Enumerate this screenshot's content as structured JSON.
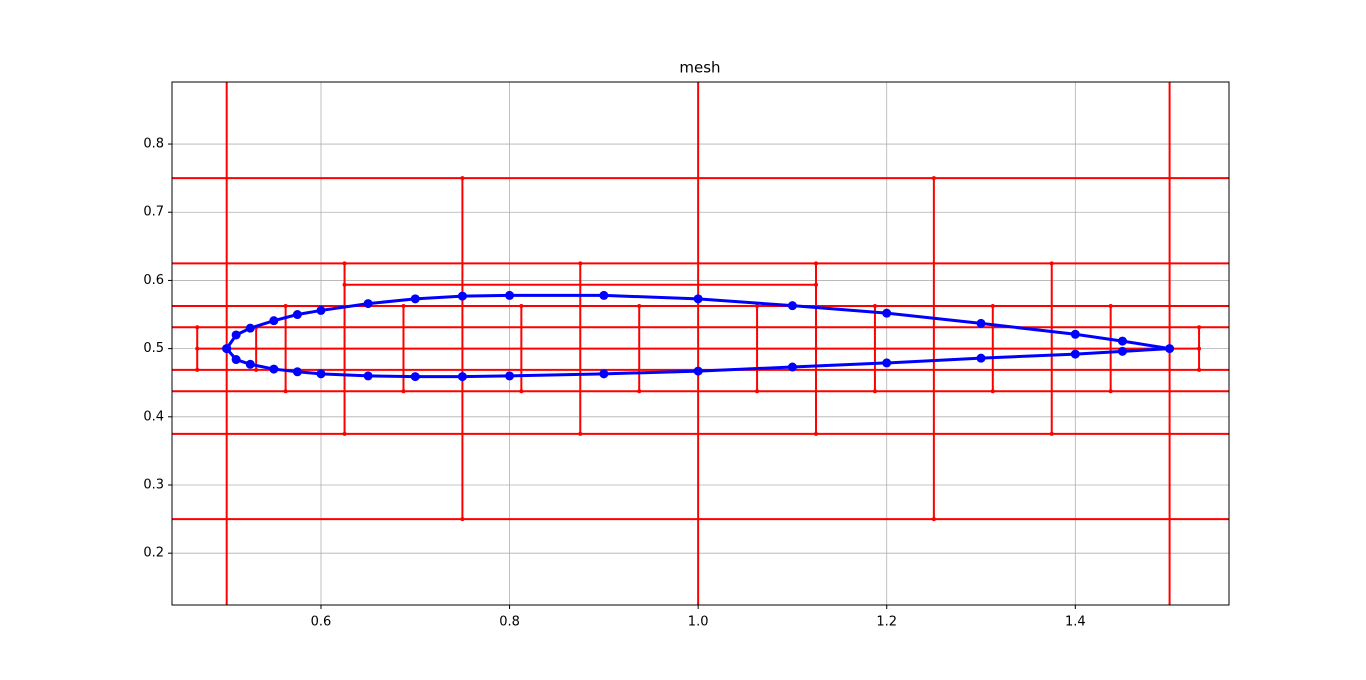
{
  "chart_data": {
    "type": "line",
    "title": "mesh",
    "xlim": [
      0.442,
      1.563
    ],
    "ylim": [
      0.124,
      0.891
    ],
    "xticks": [
      0.6,
      0.8,
      {
        "value": 1,
        "label": "1.0"
      },
      1.2,
      1.4
    ],
    "yticks": [
      0.2,
      0.3,
      0.4,
      0.5,
      0.6,
      0.7,
      0.8
    ],
    "grid": true,
    "series": [
      {
        "color": "#ff0000",
        "marker": "small",
        "x": [
          0,
          2,
          null,
          0,
          2,
          null,
          0,
          2,
          null,
          0,
          2,
          null,
          0,
          2,
          null,
          0,
          2,
          null,
          0,
          2,
          null,
          0,
          2,
          null,
          0.46875,
          1.53125,
          null,
          0.625,
          1.125,
          null,
          0.5,
          0.5,
          null,
          1,
          1,
          null,
          1.5,
          1.5,
          null,
          0.75,
          0.75,
          null,
          1.25,
          1.25,
          null,
          0.625,
          0.625,
          null,
          0.875,
          0.875,
          null,
          1.125,
          1.125,
          null,
          1.375,
          1.375,
          null,
          0.5625,
          0.5625,
          null,
          0.6875,
          0.6875,
          null,
          0.8125,
          0.8125,
          null,
          0.9375,
          0.9375,
          null,
          1.0625,
          1.0625,
          null,
          1.1875,
          1.1875,
          null,
          1.3125,
          1.3125,
          null,
          1.4375,
          1.4375,
          null,
          0.46875,
          0.46875,
          null,
          0.53125,
          0.53125,
          null,
          1.53125,
          1.53125
        ],
        "values": [
          0.75,
          0.75,
          null,
          0.25,
          0.25,
          null,
          0.625,
          0.625,
          null,
          0.375,
          0.375,
          null,
          0.5625,
          0.5625,
          null,
          0.4375,
          0.4375,
          null,
          0.53125,
          0.53125,
          null,
          0.46875,
          0.46875,
          null,
          0.5,
          0.5,
          null,
          0.59375,
          0.59375,
          null,
          0,
          1,
          null,
          0,
          1,
          null,
          0,
          1,
          null,
          0.25,
          0.75,
          null,
          0.25,
          0.75,
          null,
          0.375,
          0.625,
          null,
          0.375,
          0.625,
          null,
          0.375,
          0.625,
          null,
          0.375,
          0.625,
          null,
          0.4375,
          0.5625,
          null,
          0.4375,
          0.5625,
          null,
          0.4375,
          0.5625,
          null,
          0.4375,
          0.5625,
          null,
          0.4375,
          0.5625,
          null,
          0.4375,
          0.5625,
          null,
          0.4375,
          0.5625,
          null,
          0.4375,
          0.5625,
          null,
          0.46875,
          0.53125,
          null,
          0.46875,
          0.53125,
          null,
          0.46875,
          0.53125
        ]
      },
      {
        "color": "#0000ff",
        "marker": "large",
        "x": [
          0.5,
          0.51,
          0.525,
          0.55,
          0.575,
          0.6,
          0.65,
          0.7,
          0.75,
          0.8,
          0.9,
          1.0,
          1.1,
          1.2,
          1.3,
          1.4,
          1.45,
          1.5,
          1.45,
          1.4,
          1.3,
          1.2,
          1.1,
          1.0,
          0.9,
          0.8,
          0.75,
          0.7,
          0.65,
          0.6,
          0.575,
          0.55,
          0.525,
          0.51,
          0.5
        ],
        "values": [
          0.5,
          0.52,
          0.53,
          0.541,
          0.55,
          0.556,
          0.566,
          0.573,
          0.577,
          0.578,
          0.578,
          0.573,
          0.563,
          0.552,
          0.537,
          0.521,
          0.511,
          0.5,
          0.496,
          0.492,
          0.486,
          0.479,
          0.473,
          0.467,
          0.463,
          0.46,
          0.459,
          0.459,
          0.46,
          0.463,
          0.466,
          0.47,
          0.477,
          0.484,
          0.5
        ]
      }
    ]
  }
}
